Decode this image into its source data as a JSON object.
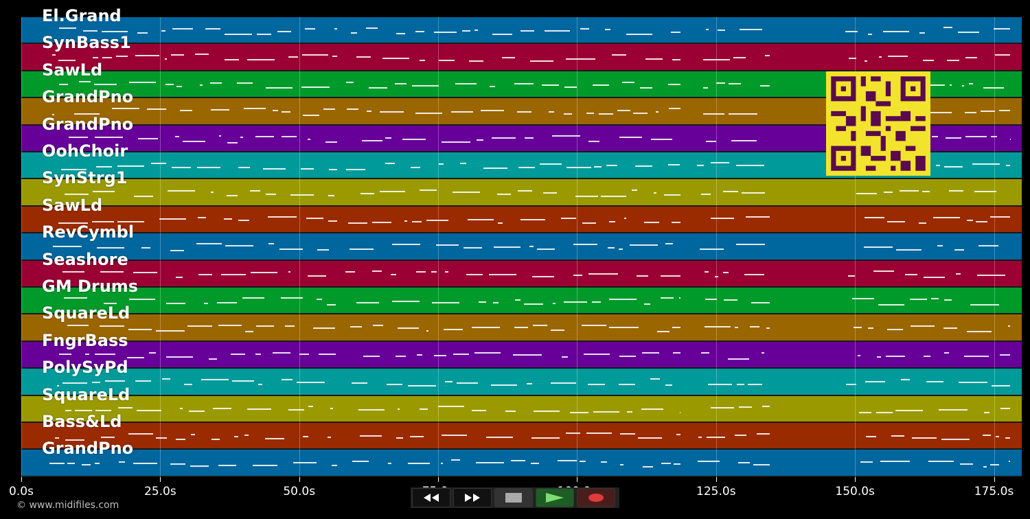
{
  "tracks": [
    {
      "name": "El.Grand",
      "color": "#00669e"
    },
    {
      "name": "SynBass1",
      "color": "#9a0033"
    },
    {
      "name": "SawLd",
      "color": "#009a2a"
    },
    {
      "name": "GrandPno",
      "color": "#9a6600"
    },
    {
      "name": "GrandPno",
      "color": "#660099"
    },
    {
      "name": "OohChoir",
      "color": "#009a9a"
    },
    {
      "name": "SynStrg1",
      "color": "#9a9a00"
    },
    {
      "name": "SawLd",
      "color": "#9a2a00"
    },
    {
      "name": "RevCymbl",
      "color": "#00669e"
    },
    {
      "name": "Seashore",
      "color": "#9a0033"
    },
    {
      "name": "GM Drums",
      "color": "#009a2a"
    },
    {
      "name": "SquareLd",
      "color": "#9a6600"
    },
    {
      "name": "FngrBass",
      "color": "#660099"
    },
    {
      "name": "PolySyPd",
      "color": "#009a9a"
    },
    {
      "name": "SquareLd",
      "color": "#9a9a00"
    },
    {
      "name": "Bass&Ld",
      "color": "#9a2a00"
    },
    {
      "name": "GrandPno",
      "color": "#00669e"
    }
  ],
  "timeline": {
    "max_seconds": 180,
    "ticks": [
      "0.0s",
      "25.0s",
      "50.0s",
      "75.0s",
      "100.0s",
      "125.0s",
      "150.0s",
      "175.0s"
    ],
    "tick_seconds": [
      0,
      25,
      50,
      75,
      100,
      125,
      150,
      175
    ]
  },
  "transport": {
    "rewind_icon": "rewind-icon",
    "forward_icon": "fast-forward-icon",
    "stop_icon": "stop-icon",
    "play_icon": "play-icon",
    "record_icon": "record-icon"
  },
  "footer": {
    "copyright": "© www.midifiles.com"
  }
}
